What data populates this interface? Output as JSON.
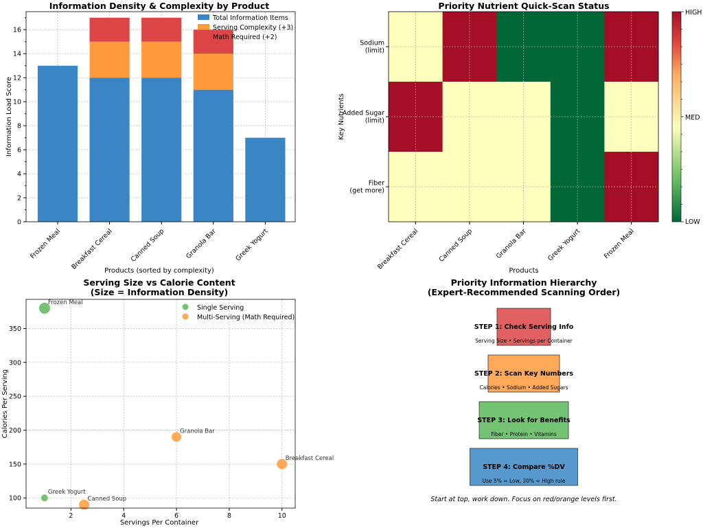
{
  "charts": [
    {
      "type": "bar",
      "title": "Information Density & Complexity by Product",
      "xlabel": "Products (sorted by complexity)",
      "ylabel": "Information Load Score",
      "ylim": [
        0,
        17.5
      ],
      "yticks": [
        0,
        2,
        4,
        6,
        8,
        10,
        12,
        14,
        16
      ],
      "categories": [
        "Frozen Meal",
        "Breakfast Cereal",
        "Canned Soup",
        "Granola Bar",
        "Greek Yogurt"
      ],
      "stacked": true,
      "series": [
        {
          "name": "Total Information Items",
          "color": "#3a86c4",
          "values": [
            13,
            12,
            12,
            11,
            7
          ]
        },
        {
          "name": "Serving Complexity (+3)",
          "color": "#ff9a3c",
          "values": [
            0,
            3,
            3,
            3,
            0
          ]
        },
        {
          "name": "Math Required (+2)",
          "color": "#dc4545",
          "values": [
            0,
            2,
            2,
            2,
            0
          ]
        }
      ],
      "legend": "top-right",
      "grid": true
    },
    {
      "type": "heatmap",
      "title": "Priority Nutrient Quick-Scan Status",
      "xlabel": "Products",
      "ylabel": "Key Nutrients",
      "columns": [
        "Breakfast Cereal",
        "Canned Soup",
        "Granola Bar",
        "Greek Yogurt",
        "Frozen Meal"
      ],
      "rows": [
        "Sodium\n(limit)",
        "Added Sugar\n(limit)",
        "Fiber\n(get more)"
      ],
      "values": [
        [
          2,
          3,
          1,
          1,
          3
        ],
        [
          3,
          2,
          2,
          1,
          2
        ],
        [
          2,
          2,
          2,
          1,
          3
        ]
      ],
      "colorbar": {
        "high": "HIGH",
        "med": "MED",
        "low": "LOW"
      },
      "colors": {
        "3": "#a50f26",
        "2": "#fefebd",
        "1": "#006837"
      },
      "grid": true
    },
    {
      "type": "scatter",
      "title": "Serving Size vs Calorie Content\n(Size = Information Density)",
      "xlabel": "Servings Per Container",
      "ylabel": "Calories Per Serving",
      "xlim": [
        0.3,
        10.5
      ],
      "ylim": [
        85,
        393
      ],
      "xticks": [
        2,
        4,
        6,
        8,
        10
      ],
      "yticks": [
        100,
        150,
        200,
        250,
        300,
        350
      ],
      "legend": "top-right",
      "grid": true,
      "series": [
        {
          "name": "Single Serving",
          "color": "#5cb85c",
          "points": [
            {
              "label": "Frozen Meal",
              "x": 1,
              "y": 380,
              "density": 13
            },
            {
              "label": "Greek Yogurt",
              "x": 1,
              "y": 100,
              "density": 7
            }
          ]
        },
        {
          "name": "Multi-Serving (Math Required)",
          "color": "#ff9a3c",
          "points": [
            {
              "label": "Granola Bar",
              "x": 6,
              "y": 190,
              "density": 11
            },
            {
              "label": "Breakfast Cereal",
              "x": 10,
              "y": 150,
              "density": 12
            },
            {
              "label": "Canned Soup",
              "x": 2.5,
              "y": 90,
              "density": 12
            }
          ]
        }
      ]
    }
  ],
  "hierarchy": {
    "title": "Priority Information Hierarchy\n(Expert-Recommended Scanning Order)",
    "steps": [
      {
        "title": "STEP 1: Check Serving Info",
        "desc": "Serving Size • Servings per Container",
        "color": "#dc4545"
      },
      {
        "title": "STEP 2: Scan Key Numbers",
        "desc": "Calories • Sodium • Added Sugars",
        "color": "#ff9a3c"
      },
      {
        "title": "STEP 3: Look for Benefits",
        "desc": "Fiber • Protein • Vitamins",
        "color": "#5cb85c"
      },
      {
        "title": "STEP 4: Compare %DV",
        "desc": "Use 5% = Low, 20% = High rule",
        "color": "#3a86c4"
      }
    ],
    "footer": "Start at top, work down. Focus on red/orange levels first."
  }
}
